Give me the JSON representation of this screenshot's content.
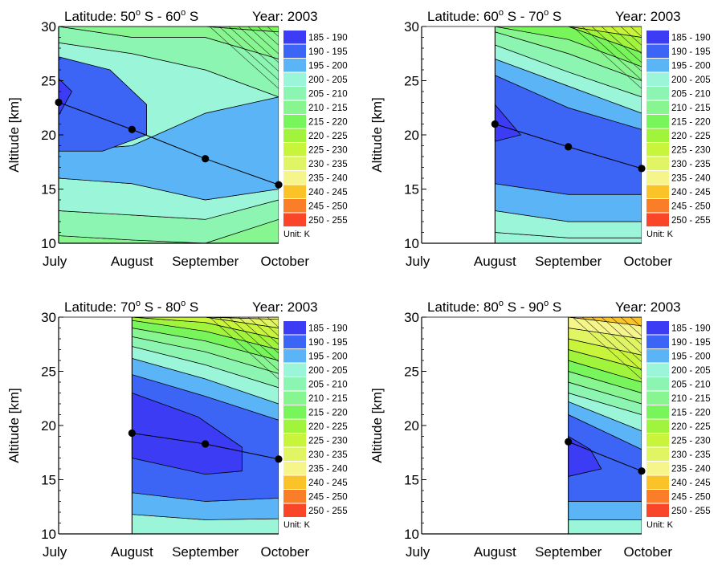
{
  "legend": {
    "unit_label": "Unit: K",
    "entries": [
      {
        "label": "185 - 190",
        "color": "#3c3cf5"
      },
      {
        "label": "190 - 195",
        "color": "#3c64f5"
      },
      {
        "label": "195 - 200",
        "color": "#5ab4f5"
      },
      {
        "label": "200 - 205",
        "color": "#9bf5d8"
      },
      {
        "label": "205 - 210",
        "color": "#8cf5b2"
      },
      {
        "label": "210 - 215",
        "color": "#87f590"
      },
      {
        "label": "215 -  220",
        "color": "#78f55a"
      },
      {
        "label": "220 -  225",
        "color": "#a0f53c"
      },
      {
        "label": "225 -  230",
        "color": "#c8f53c"
      },
      {
        "label": "230 -  235",
        "color": "#e1f564"
      },
      {
        "label": "235 -  240",
        "color": "#f5f58c"
      },
      {
        "label": "240 -  245",
        "color": "#fac328"
      },
      {
        "label": "245 -  250",
        "color": "#fa7d28"
      },
      {
        "label": "250 -  255",
        "color": "#fa4628"
      }
    ]
  },
  "chart_data": [
    {
      "type": "contour",
      "latitude_label": "Latitude: 50",
      "latitude_sup1": "o",
      "latitude_mid": " S - 60",
      "latitude_sup2": "o",
      "latitude_end": " S",
      "year_label": "Year: 2003",
      "ylabel": "Altitude [km]",
      "xlabel": "",
      "categories": [
        "July",
        "August",
        "September",
        "October"
      ],
      "ylim": [
        10,
        30
      ],
      "yticks": [
        10,
        15,
        20,
        25,
        30
      ],
      "data_start": 0,
      "bands": [
        {
          "color": "#87f590",
          "upper": [
            10.7,
            10.3,
            10,
            12.2
          ],
          "lower": [
            10,
            10,
            10,
            10
          ]
        },
        {
          "color": "#8cf5b2",
          "upper": [
            13,
            12.6,
            12.2,
            14
          ],
          "lower": [
            10.7,
            10.3,
            10,
            12.2
          ]
        },
        {
          "color": "#9bf5d8",
          "upper": [
            16,
            15.5,
            14,
            15
          ],
          "lower": [
            13,
            12.6,
            12.2,
            14
          ]
        },
        {
          "color": "#5ab4f5",
          "upper": [
            18.5,
            19,
            22,
            23.5
          ],
          "lower": [
            16,
            15.5,
            14,
            15
          ]
        },
        {
          "color": "#9bf5d8",
          "upper": [
            28.5,
            27.5,
            26,
            23.5
          ],
          "lower": [
            18.5,
            19,
            22,
            23.5
          ]
        },
        {
          "color": "#8cf5b2",
          "upper": [
            30,
            29,
            29,
            27
          ],
          "lower": [
            28.5,
            27.5,
            26,
            23.5
          ]
        },
        {
          "color": "#87f590",
          "upper": [
            30,
            30,
            30,
            29.5
          ],
          "lower": [
            30,
            29,
            29,
            27
          ]
        },
        {
          "color": "#78f55a",
          "upper": [
            30,
            30,
            30,
            30
          ],
          "lower": [
            30,
            30,
            30,
            29.5
          ]
        }
      ],
      "blobs": [
        {
          "color": "#3c64f5",
          "points": [
            [
              0,
              27.2
            ],
            [
              0.7,
              26.0
            ],
            [
              1.2,
              22.8
            ],
            [
              1.2,
              20.0
            ],
            [
              0.6,
              18.5
            ],
            [
              0,
              18.5
            ]
          ]
        },
        {
          "color": "#3c3cf5",
          "points": [
            [
              0,
              25.2
            ],
            [
              0.18,
              24.0
            ],
            [
              0,
              21.8
            ]
          ]
        }
      ],
      "hatch_color": "#2a6a3a",
      "profile_points": [
        23.0,
        20.5,
        17.8,
        15.4
      ]
    },
    {
      "type": "contour",
      "latitude_label": "Latitude: 60",
      "latitude_sup1": "o",
      "latitude_mid": " S - 70",
      "latitude_sup2": "o",
      "latitude_end": " S",
      "year_label": "Year: 2003",
      "ylabel": "Altitude [km]",
      "xlabel": "",
      "categories": [
        "July",
        "August",
        "September",
        "October"
      ],
      "ylim": [
        10,
        30
      ],
      "yticks": [
        10,
        15,
        20,
        25,
        30
      ],
      "data_start": 1,
      "bands": [
        {
          "color": "#9bf5d8",
          "upper": [
            11.0,
            10.5,
            10.5
          ],
          "lower": [
            10,
            10,
            10
          ]
        },
        {
          "color": "#9bf5d8",
          "upper": [
            13.0,
            12.0,
            12.0
          ],
          "lower": [
            11.0,
            10.5,
            10.5
          ]
        },
        {
          "color": "#5ab4f5",
          "upper": [
            15.5,
            14.5,
            14.5
          ],
          "lower": [
            13.0,
            12.0,
            12.0
          ]
        },
        {
          "color": "#3c64f5",
          "upper": [
            25.5,
            22.5,
            20.5
          ],
          "lower": [
            15.5,
            14.5,
            14.5
          ]
        },
        {
          "color": "#5ab4f5",
          "upper": [
            27.0,
            24.5,
            22.0
          ],
          "lower": [
            25.5,
            22.5,
            20.5
          ]
        },
        {
          "color": "#9bf5d8",
          "upper": [
            28.3,
            25.8,
            23.5
          ],
          "lower": [
            27.0,
            24.5,
            22.0
          ]
        },
        {
          "color": "#8cf5b2",
          "upper": [
            29.5,
            27.5,
            25.0
          ],
          "lower": [
            28.3,
            25.8,
            23.5
          ]
        },
        {
          "color": "#87f590",
          "upper": [
            30,
            28.8,
            26.3
          ],
          "lower": [
            29.5,
            27.5,
            25.0
          ]
        },
        {
          "color": "#78f55a",
          "upper": [
            30,
            30,
            27.6
          ],
          "lower": [
            30,
            28.8,
            26.3
          ]
        },
        {
          "color": "#a0f53c",
          "upper": [
            30,
            30,
            29.0
          ],
          "lower": [
            30,
            30,
            27.6
          ]
        },
        {
          "color": "#c8f53c",
          "upper": [
            30,
            30,
            30
          ],
          "lower": [
            30,
            30,
            29.0
          ]
        }
      ],
      "blobs": [
        {
          "color": "#3c3cf5",
          "points": [
            [
              1,
              22.8
            ],
            [
              1.2,
              21.2
            ],
            [
              1.35,
              20.0
            ],
            [
              1,
              19.4
            ]
          ]
        }
      ],
      "hatch_color": "#2a6a3a",
      "profile_points": [
        null,
        21.0,
        18.9,
        16.9
      ]
    },
    {
      "type": "contour",
      "latitude_label": "Latitude: 70",
      "latitude_sup1": "o",
      "latitude_mid": " S - 80",
      "latitude_sup2": "o",
      "latitude_end": " S",
      "year_label": "Year: 2003",
      "ylabel": "Altitude [km]",
      "xlabel": "",
      "categories": [
        "July",
        "August",
        "September",
        "October"
      ],
      "ylim": [
        10,
        30
      ],
      "yticks": [
        10,
        15,
        20,
        25,
        30
      ],
      "data_start": 1,
      "bands": [
        {
          "color": "#9bf5d8",
          "upper": [
            11.8,
            11.3,
            11.4
          ],
          "lower": [
            10,
            10,
            10
          ]
        },
        {
          "color": "#5ab4f5",
          "upper": [
            13.8,
            13.0,
            13.3
          ],
          "lower": [
            11.8,
            11.3,
            11.4
          ]
        },
        {
          "color": "#3c64f5",
          "upper": [
            24.7,
            22.7,
            20.5
          ],
          "lower": [
            13.8,
            13.0,
            13.3
          ]
        },
        {
          "color": "#5ab4f5",
          "upper": [
            26.2,
            24.3,
            22.0
          ],
          "lower": [
            24.7,
            22.7,
            20.5
          ]
        },
        {
          "color": "#9bf5d8",
          "upper": [
            27.3,
            25.6,
            23.5
          ],
          "lower": [
            26.2,
            24.3,
            22.0
          ]
        },
        {
          "color": "#8cf5b2",
          "upper": [
            28.2,
            26.8,
            24.8
          ],
          "lower": [
            27.3,
            25.6,
            23.5
          ]
        },
        {
          "color": "#87f590",
          "upper": [
            29.0,
            27.8,
            26.0
          ],
          "lower": [
            28.2,
            26.8,
            24.8
          ]
        },
        {
          "color": "#78f55a",
          "upper": [
            29.7,
            28.7,
            27.0
          ],
          "lower": [
            29.0,
            27.8,
            26.0
          ]
        },
        {
          "color": "#a0f53c",
          "upper": [
            30,
            29.5,
            28.0
          ],
          "lower": [
            29.7,
            28.7,
            27.0
          ]
        },
        {
          "color": "#c8f53c",
          "upper": [
            30,
            30,
            29.0
          ],
          "lower": [
            30,
            29.5,
            28.0
          ]
        },
        {
          "color": "#e1f564",
          "upper": [
            30,
            30,
            29.8
          ],
          "lower": [
            30,
            30,
            29.0
          ]
        },
        {
          "color": "#f5f58c",
          "upper": [
            30,
            30,
            30
          ],
          "lower": [
            30,
            30,
            29.8
          ]
        }
      ],
      "blobs": [
        {
          "color": "#3c3cf5",
          "points": [
            [
              1,
              23.0
            ],
            [
              1.9,
              20.8
            ],
            [
              2.5,
              18.0
            ],
            [
              2.5,
              15.8
            ],
            [
              2.0,
              15.5
            ],
            [
              1,
              17.0
            ]
          ]
        }
      ],
      "hatch_color": "#2a6a3a",
      "profile_points": [
        null,
        19.3,
        18.3,
        16.9
      ]
    },
    {
      "type": "contour",
      "latitude_label": "Latitude: 80",
      "latitude_sup1": "o",
      "latitude_mid": " S - 90",
      "latitude_sup2": "o",
      "latitude_end": " S",
      "year_label": "Year: 2003",
      "ylabel": "Altitude [km]",
      "xlabel": "",
      "categories": [
        "July",
        "August",
        "September",
        "October"
      ],
      "ylim": [
        10,
        30
      ],
      "yticks": [
        10,
        15,
        20,
        25,
        30
      ],
      "data_start": 2,
      "bands": [
        {
          "color": "#9bf5d8",
          "upper": [
            11.3,
            11.3
          ],
          "lower": [
            10,
            10
          ]
        },
        {
          "color": "#5ab4f5",
          "upper": [
            13.0,
            13.0
          ],
          "lower": [
            11.3,
            11.3
          ]
        },
        {
          "color": "#3c64f5",
          "upper": [
            21.0,
            17.8
          ],
          "lower": [
            13.0,
            13.0
          ]
        },
        {
          "color": "#5ab4f5",
          "upper": [
            22.2,
            19.5
          ],
          "lower": [
            21.0,
            17.8
          ]
        },
        {
          "color": "#9bf5d8",
          "upper": [
            23.0,
            21.0
          ],
          "lower": [
            22.2,
            19.5
          ]
        },
        {
          "color": "#8cf5b2",
          "upper": [
            24.0,
            22.0
          ],
          "lower": [
            23.0,
            21.0
          ]
        },
        {
          "color": "#87f590",
          "upper": [
            25.0,
            23.0
          ],
          "lower": [
            24.0,
            22.0
          ]
        },
        {
          "color": "#78f55a",
          "upper": [
            26.0,
            24.0
          ],
          "lower": [
            25.0,
            23.0
          ]
        },
        {
          "color": "#a0f53c",
          "upper": [
            27.0,
            25.2
          ],
          "lower": [
            26.0,
            24.0
          ]
        },
        {
          "color": "#c8f53c",
          "upper": [
            28.0,
            26.5
          ],
          "lower": [
            27.0,
            25.2
          ]
        },
        {
          "color": "#e1f564",
          "upper": [
            29.0,
            28.0
          ],
          "lower": [
            28.0,
            26.5
          ]
        },
        {
          "color": "#f5f58c",
          "upper": [
            30,
            29.2
          ],
          "lower": [
            29.0,
            28.0
          ]
        },
        {
          "color": "#fac328",
          "upper": [
            30,
            30
          ],
          "lower": [
            30,
            29.2
          ]
        }
      ],
      "blobs": [
        {
          "color": "#3c3cf5",
          "points": [
            [
              2,
              19.0
            ],
            [
              2.3,
              17.8
            ],
            [
              2.45,
              16.0
            ],
            [
              2,
              15.3
            ]
          ]
        }
      ],
      "hatch_color": "#2a6a3a",
      "profile_points": [
        null,
        null,
        18.5,
        15.8
      ]
    }
  ]
}
